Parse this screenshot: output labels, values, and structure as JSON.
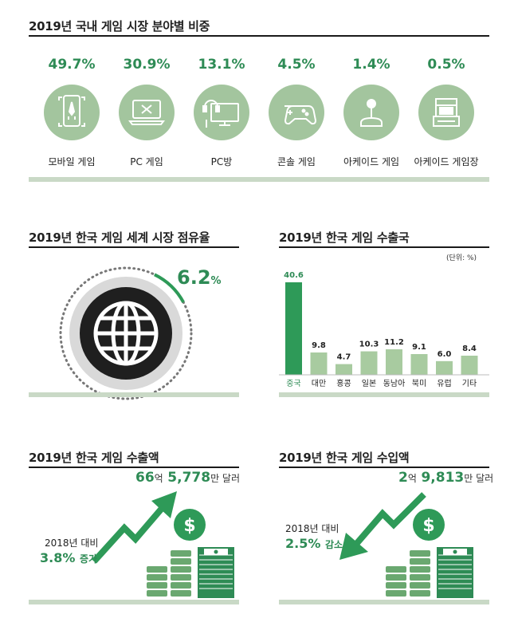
{
  "domestic": {
    "title": "2019년 국내 게임 시장 분야별 비중",
    "items": [
      {
        "pct": "49.7%",
        "label": "모바일 게임",
        "icon": "mobile-game-icon"
      },
      {
        "pct": "30.9%",
        "label": "PC 게임",
        "icon": "laptop-icon"
      },
      {
        "pct": "13.1%",
        "label": "PC방",
        "icon": "pc-cafe-icon"
      },
      {
        "pct": "4.5%",
        "label": "콘솔 게임",
        "icon": "gamepad-icon"
      },
      {
        "pct": "1.4%",
        "label": "아케이드 게임",
        "icon": "joystick-icon"
      },
      {
        "pct": "0.5%",
        "label": "아케이드 게임장",
        "icon": "arcade-cabinet-icon"
      }
    ]
  },
  "world_share": {
    "title": "2019년 한국 게임 세계 시장 점유율",
    "value": "6.2",
    "unit": "%",
    "share": 0.062
  },
  "export_chart": {
    "title": "2019년 한국 게임 수출국",
    "unit_note": "(단위: %)"
  },
  "export_amount": {
    "title": "2019년 한국 게임 수출액",
    "num1": "66",
    "unit1": "억",
    "num2": "5,778",
    "unit2": "만 달러",
    "compare_label": "2018년 대비",
    "compare_value": "3.8%",
    "compare_word": "증가"
  },
  "import_amount": {
    "title": "2019년 한국 게임 수입액",
    "num1": "2",
    "unit1": "억",
    "num2": "9,813",
    "unit2": "만 달러",
    "compare_label": "2018년 대비",
    "compare_value": "2.5%",
    "compare_word": "감소"
  },
  "colors": {
    "accent": "#2e8b55",
    "light_green": "#a3c59e",
    "bar_green": "#a8cba0",
    "highlight_bar": "#2e9a58",
    "strip": "#c9d9c6"
  },
  "chart_data": {
    "type": "bar",
    "title": "2019년 한국 게임 수출국",
    "categories": [
      "중국",
      "대만",
      "홍콩",
      "일본",
      "동남아",
      "북미",
      "유럽",
      "기타"
    ],
    "values": [
      40.6,
      9.8,
      4.7,
      10.3,
      11.2,
      9.1,
      6.0,
      8.4
    ],
    "value_labels": [
      "40.6",
      "9.8",
      "4.7",
      "10.3",
      "11.2",
      "9.1",
      "6.0",
      "8.4"
    ],
    "highlight_index": 0,
    "unit": "(단위: %)",
    "ylim": [
      0,
      40.6
    ]
  }
}
